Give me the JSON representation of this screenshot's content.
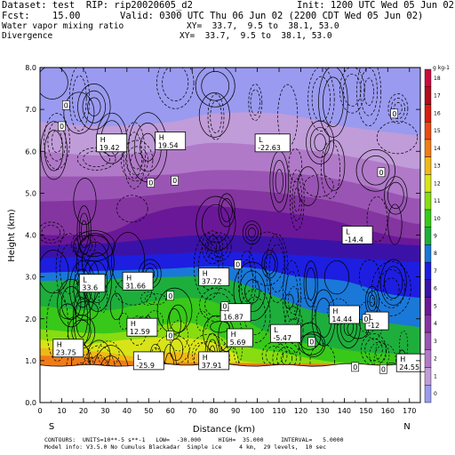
{
  "header": {
    "dataset_line": "Dataset: test  RIP: rip20020605_d2",
    "init_line": "Init: 1200 UTC Wed 05 Jun 02",
    "fcst_line": "Fcst:    15.00",
    "valid_line": "Valid: 0300 UTC Thu 06 Jun 02 (2200 CDT Wed 05 Jun 02)",
    "field1": "Water vapor mixing ratio",
    "xy1": "XY=  33.7,  9.5 to  38.1, 53.0",
    "field2": "Divergence",
    "xy2": "XY=  33.7,  9.5 to  38.1, 53.0"
  },
  "footer": {
    "contours": "CONTOURS:  UNITS=10**-5 s**-1   LOW=  -30.000     HIGH=  35.000     INTERVAL=   5.0000",
    "model_info": "Model info: V3.5.0 No Cumulus Blackadar  Simple ice     4 km,  29 levels,  10 sec"
  },
  "chart_data": {
    "type": "heatmap",
    "xlabel": "Distance (km)",
    "ylabel": "Height (km)",
    "xlim": [
      0,
      175
    ],
    "ylim": [
      0,
      8
    ],
    "x_ticks": [
      "0",
      "10",
      "20",
      "30",
      "40",
      "50",
      "60",
      "70",
      "80",
      "90",
      "100",
      "110",
      "120",
      "130",
      "140",
      "150",
      "160",
      "170"
    ],
    "y_ticks": [
      "0.0",
      "1.0",
      "2.0",
      "3.0",
      "4.0",
      "5.0",
      "6.0",
      "7.0",
      "8.0"
    ],
    "left_endpoint": "S",
    "right_endpoint": "N",
    "colorbar": {
      "unit_label": "g kg-1",
      "levels": [
        "0",
        "1",
        "2",
        "3",
        "4",
        "5",
        "6",
        "7",
        "8",
        "9",
        "10",
        "11",
        "12",
        "13",
        "14",
        "15",
        "16",
        "17",
        "18"
      ],
      "colors": [
        "#9a9af0",
        "#c09cd8",
        "#b07ac8",
        "#9a55b4",
        "#8435a0",
        "#6a1898",
        "#3b12a8",
        "#1d1ee0",
        "#1a78d8",
        "#1eae3c",
        "#38c81a",
        "#88dc10",
        "#d8e418",
        "#f0b818",
        "#f07c18",
        "#e84a14",
        "#d81c10",
        "#b00c1c",
        "#c80a3c"
      ]
    },
    "moisture_layers": [
      {
        "level": 1,
        "top": [
          [
            0,
            6.7
          ],
          [
            30,
            6.6
          ],
          [
            60,
            6.7
          ],
          [
            80,
            6.9
          ],
          [
            110,
            6.9
          ],
          [
            140,
            6.6
          ],
          [
            170,
            6.4
          ],
          [
            175,
            6.4
          ]
        ]
      },
      {
        "level": 2,
        "top": [
          [
            0,
            6.0
          ],
          [
            30,
            5.9
          ],
          [
            60,
            6.05
          ],
          [
            80,
            6.2
          ],
          [
            110,
            6.1
          ],
          [
            140,
            5.9
          ],
          [
            170,
            5.6
          ],
          [
            175,
            5.6
          ]
        ]
      },
      {
        "level": 3,
        "top": [
          [
            0,
            5.4
          ],
          [
            30,
            5.4
          ],
          [
            60,
            5.45
          ],
          [
            80,
            5.55
          ],
          [
            110,
            5.5
          ],
          [
            140,
            5.3
          ],
          [
            170,
            4.9
          ],
          [
            175,
            4.9
          ]
        ]
      },
      {
        "level": 4,
        "top": [
          [
            0,
            4.8
          ],
          [
            30,
            4.85
          ],
          [
            60,
            5.0
          ],
          [
            80,
            5.1
          ],
          [
            110,
            5.0
          ],
          [
            140,
            4.75
          ],
          [
            170,
            4.3
          ],
          [
            175,
            4.3
          ]
        ]
      },
      {
        "level": 5,
        "top": [
          [
            0,
            4.0
          ],
          [
            30,
            4.05
          ],
          [
            50,
            4.5
          ],
          [
            70,
            4.7
          ],
          [
            100,
            4.6
          ],
          [
            130,
            4.4
          ],
          [
            160,
            4.0
          ],
          [
            175,
            3.9
          ]
        ]
      },
      {
        "level": 6,
        "top": [
          [
            0,
            3.75
          ],
          [
            30,
            3.8
          ],
          [
            60,
            3.95
          ],
          [
            80,
            4.0
          ],
          [
            110,
            3.95
          ],
          [
            140,
            3.85
          ],
          [
            175,
            3.75
          ]
        ]
      },
      {
        "level": 7,
        "top": [
          [
            0,
            3.45
          ],
          [
            30,
            3.5
          ],
          [
            60,
            3.55
          ],
          [
            80,
            3.6
          ],
          [
            110,
            3.55
          ],
          [
            140,
            3.45
          ],
          [
            175,
            3.35
          ]
        ]
      },
      {
        "level": 8,
        "top": [
          [
            0,
            3.1
          ],
          [
            30,
            3.15
          ],
          [
            60,
            3.2
          ],
          [
            80,
            3.25
          ],
          [
            100,
            3.2
          ],
          [
            120,
            3.0
          ],
          [
            140,
            2.9
          ],
          [
            160,
            2.6
          ],
          [
            175,
            2.5
          ]
        ]
      },
      {
        "level": 9,
        "top": [
          [
            0,
            2.9
          ],
          [
            30,
            2.95
          ],
          [
            60,
            3.0
          ],
          [
            80,
            3.0
          ],
          [
            95,
            2.8
          ],
          [
            110,
            2.5
          ],
          [
            125,
            2.2
          ],
          [
            140,
            2.05
          ],
          [
            160,
            1.9
          ],
          [
            175,
            1.8
          ]
        ]
      },
      {
        "level": 10,
        "top": [
          [
            0,
            2.3
          ],
          [
            30,
            2.2
          ],
          [
            50,
            2.4
          ],
          [
            70,
            2.5
          ],
          [
            85,
            2.3
          ],
          [
            100,
            1.8
          ],
          [
            115,
            1.5
          ],
          [
            130,
            1.35
          ],
          [
            150,
            1.2
          ],
          [
            175,
            1.15
          ]
        ]
      },
      {
        "level": 11,
        "top": [
          [
            0,
            1.75
          ],
          [
            30,
            1.65
          ],
          [
            50,
            1.8
          ],
          [
            70,
            1.9
          ],
          [
            90,
            1.4
          ],
          [
            110,
            1.2
          ],
          [
            125,
            1.05
          ],
          [
            140,
            0.95
          ],
          [
            175,
            0.9
          ]
        ]
      },
      {
        "level": 12,
        "top": [
          [
            0,
            1.5
          ],
          [
            20,
            1.4
          ],
          [
            40,
            1.5
          ],
          [
            60,
            1.55
          ],
          [
            80,
            1.45
          ],
          [
            90,
            1.15
          ],
          [
            100,
            0.95
          ],
          [
            175,
            0.9
          ]
        ]
      },
      {
        "level": 13,
        "top": [
          [
            0,
            1.3
          ],
          [
            15,
            1.25
          ],
          [
            30,
            1.2
          ],
          [
            45,
            1.1
          ],
          [
            60,
            1.2
          ],
          [
            75,
            1.15
          ],
          [
            85,
            1.0
          ],
          [
            95,
            0.9
          ],
          [
            175,
            0.9
          ]
        ]
      },
      {
        "level": 14,
        "top": [
          [
            0,
            1.12
          ],
          [
            20,
            1.1
          ],
          [
            40,
            1.0
          ],
          [
            60,
            0.95
          ],
          [
            80,
            0.95
          ],
          [
            175,
            0.9
          ]
        ]
      }
    ],
    "terrain_top_km": 0.9,
    "extrema_labels": [
      {
        "kind": "H",
        "value": "19.42",
        "x": 33,
        "y": 6.2
      },
      {
        "kind": "H",
        "value": "19.54",
        "x": 60,
        "y": 6.25
      },
      {
        "kind": "L",
        "value": "-22.63",
        "x": 107,
        "y": 6.2
      },
      {
        "kind": "L",
        "value": "-14.4",
        "x": 146,
        "y": 4.0
      },
      {
        "kind": "L",
        "value": "33.6",
        "x": 24,
        "y": 2.85
      },
      {
        "kind": "H",
        "value": "31.66",
        "x": 45,
        "y": 2.9
      },
      {
        "kind": "H",
        "value": "37.72",
        "x": 80,
        "y": 3.0
      },
      {
        "kind": "H",
        "value": "16.87",
        "x": 90,
        "y": 2.15
      },
      {
        "kind": "H",
        "value": "14.44",
        "x": 140,
        "y": 2.1
      },
      {
        "kind": "L",
        "value": "-12",
        "x": 155,
        "y": 1.95
      },
      {
        "kind": "H",
        "value": "12.59",
        "x": 47,
        "y": 1.8
      },
      {
        "kind": "H",
        "value": "5.69",
        "x": 92,
        "y": 1.55
      },
      {
        "kind": "L",
        "value": "-5.47",
        "x": 113,
        "y": 1.65
      },
      {
        "kind": "H",
        "value": "23.75",
        "x": 13,
        "y": 1.3
      },
      {
        "kind": "L",
        "value": "-25.9",
        "x": 50,
        "y": 1.0
      },
      {
        "kind": "H",
        "value": "37.91",
        "x": 80,
        "y": 1.0
      },
      {
        "kind": "H",
        "value": "24.55",
        "x": 171,
        "y": 0.95
      }
    ],
    "zero_labels": [
      {
        "x": 12,
        "y": 7.1
      },
      {
        "x": 10,
        "y": 6.6
      },
      {
        "x": 51,
        "y": 5.25
      },
      {
        "x": 62,
        "y": 5.3
      },
      {
        "x": 163,
        "y": 6.9
      },
      {
        "x": 157,
        "y": 5.5
      },
      {
        "x": 91,
        "y": 3.3
      },
      {
        "x": 60,
        "y": 2.55
      },
      {
        "x": 85,
        "y": 2.3
      },
      {
        "x": 125,
        "y": 1.45
      },
      {
        "x": 150,
        "y": 2.0
      },
      {
        "x": 60,
        "y": 1.6
      },
      {
        "x": 145,
        "y": 0.85
      },
      {
        "x": 158,
        "y": 0.8
      }
    ]
  }
}
